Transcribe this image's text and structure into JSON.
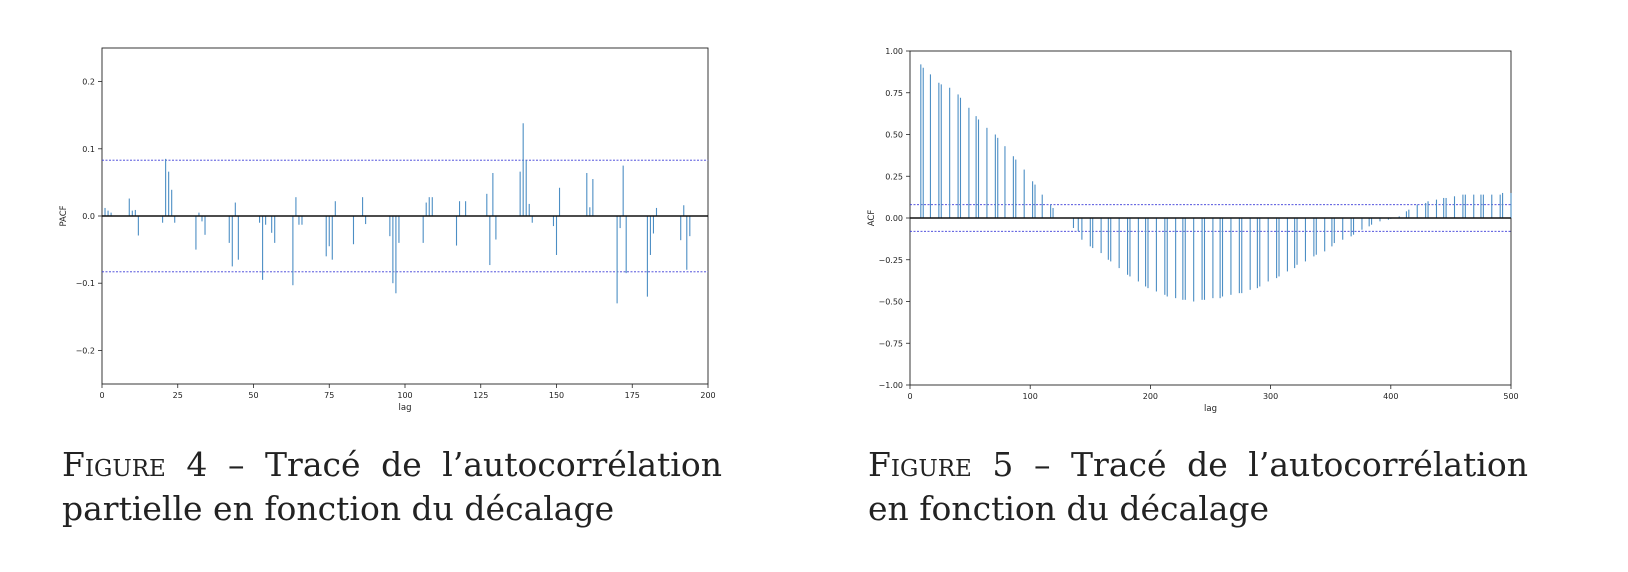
{
  "figures": [
    {
      "caption_label": "Figure",
      "caption_number": "4",
      "caption_separator": " – ",
      "caption_text": "Tracé de l’autocorrélation par­tielle en fonction du décalage"
    },
    {
      "caption_label": "Figure",
      "caption_number": "5",
      "caption_separator": " – ",
      "caption_text": "Tracé de l’autocorrélation en fonction du décalage"
    }
  ],
  "chart_data": [
    {
      "type": "bar",
      "style": "stem",
      "title": "",
      "xlabel": "lag",
      "ylabel": "PACF",
      "xlim": [
        0,
        200
      ],
      "ylim": [
        -0.25,
        0.25
      ],
      "xticks": [
        0,
        25,
        50,
        75,
        100,
        125,
        150,
        175,
        200
      ],
      "xtick_labels": [
        "0",
        "25",
        "50",
        "75",
        "100",
        "125",
        "150",
        "175",
        "200"
      ],
      "yticks": [
        -0.2,
        -0.1,
        0.0,
        0.1,
        0.2
      ],
      "ytick_labels": [
        "−0.2",
        "−0.1",
        "0.0",
        "0.1",
        "0.2"
      ],
      "confidence_band": [
        -0.083,
        0.083
      ],
      "line_color": "#4c8ec4",
      "band_color": "#3a3ad8",
      "x": [
        1,
        2,
        3,
        9,
        10,
        11,
        12,
        20,
        21,
        22,
        23,
        24,
        31,
        32,
        33,
        34,
        42,
        43,
        44,
        45,
        52,
        53,
        54,
        56,
        57,
        63,
        64,
        65,
        66,
        74,
        75,
        76,
        77,
        83,
        86,
        87,
        95,
        96,
        97,
        98,
        106,
        107,
        108,
        109,
        117,
        118,
        120,
        127,
        128,
        129,
        130,
        138,
        139,
        140,
        141,
        142,
        149,
        150,
        151,
        160,
        161,
        162,
        170,
        171,
        172,
        173,
        180,
        181,
        182,
        183,
        191,
        192,
        193,
        194
      ],
      "values": [
        0.012,
        0.008,
        0.005,
        0.026,
        0.008,
        0.009,
        -0.029,
        -0.01,
        0.085,
        0.066,
        0.039,
        -0.01,
        -0.05,
        0.005,
        -0.008,
        -0.028,
        -0.04,
        -0.075,
        0.02,
        -0.065,
        -0.01,
        -0.095,
        -0.013,
        -0.025,
        -0.04,
        -0.103,
        0.028,
        -0.013,
        -0.013,
        -0.06,
        -0.045,
        -0.065,
        0.022,
        -0.042,
        0.028,
        -0.012,
        -0.03,
        -0.1,
        -0.115,
        -0.04,
        -0.04,
        0.02,
        0.028,
        0.028,
        -0.044,
        0.022,
        0.022,
        0.033,
        -0.073,
        0.064,
        -0.035,
        0.066,
        0.138,
        0.083,
        0.018,
        -0.01,
        -0.015,
        -0.058,
        0.042,
        0.064,
        0.013,
        0.055,
        -0.13,
        -0.018,
        0.075,
        -0.085,
        -0.12,
        -0.058,
        -0.026,
        0.012,
        -0.036,
        0.016,
        -0.08,
        -0.03
      ]
    },
    {
      "type": "bar",
      "style": "stem",
      "title": "",
      "xlabel": "lag",
      "ylabel": "ACF",
      "xlim": [
        0,
        500
      ],
      "ylim": [
        -1.0,
        1.0
      ],
      "xticks": [
        0,
        100,
        200,
        300,
        400,
        500
      ],
      "xtick_labels": [
        "0",
        "100",
        "200",
        "300",
        "400",
        "500"
      ],
      "yticks": [
        -1.0,
        -0.75,
        -0.5,
        -0.25,
        0.0,
        0.25,
        0.5,
        0.75,
        1.0
      ],
      "ytick_labels": [
        "−1.00",
        "−0.75",
        "−0.50",
        "−0.25",
        "0.00",
        "0.25",
        "0.50",
        "0.75",
        "1.00"
      ],
      "confidence_band": [
        -0.08,
        0.08
      ],
      "line_color": "#4c8ec4",
      "band_color": "#3a3ad8",
      "x": [
        9,
        11,
        17,
        24,
        26,
        33,
        40,
        42,
        49,
        55,
        57,
        64,
        71,
        73,
        79,
        86,
        88,
        95,
        102,
        104,
        110,
        117,
        119,
        136,
        140,
        143,
        150,
        152,
        159,
        165,
        167,
        174,
        181,
        183,
        190,
        196,
        198,
        205,
        212,
        214,
        221,
        227,
        229,
        236,
        243,
        245,
        252,
        258,
        260,
        267,
        274,
        276,
        283,
        289,
        291,
        298,
        305,
        307,
        314,
        320,
        322,
        329,
        336,
        338,
        345,
        351,
        353,
        360,
        367,
        369,
        376,
        382,
        384,
        391,
        398,
        400,
        407,
        413,
        415,
        422,
        429,
        431,
        438,
        444,
        446,
        453,
        460,
        462,
        469,
        475,
        477,
        484,
        491,
        493,
        500
      ],
      "values": [
        0.92,
        0.9,
        0.86,
        0.81,
        0.8,
        0.78,
        0.74,
        0.72,
        0.66,
        0.61,
        0.59,
        0.54,
        0.5,
        0.48,
        0.43,
        0.37,
        0.35,
        0.29,
        0.22,
        0.2,
        0.14,
        0.08,
        0.06,
        -0.06,
        -0.08,
        -0.13,
        -0.17,
        -0.18,
        -0.21,
        -0.25,
        -0.26,
        -0.3,
        -0.34,
        -0.35,
        -0.38,
        -0.41,
        -0.42,
        -0.44,
        -0.46,
        -0.47,
        -0.48,
        -0.49,
        -0.49,
        -0.5,
        -0.49,
        -0.49,
        -0.48,
        -0.48,
        -0.47,
        -0.46,
        -0.45,
        -0.45,
        -0.43,
        -0.42,
        -0.41,
        -0.38,
        -0.36,
        -0.35,
        -0.32,
        -0.3,
        -0.28,
        -0.26,
        -0.23,
        -0.22,
        -0.2,
        -0.17,
        -0.15,
        -0.13,
        -0.11,
        -0.1,
        -0.07,
        -0.05,
        -0.04,
        -0.02,
        -0.01,
        -0.005,
        0.01,
        0.04,
        0.05,
        0.08,
        0.09,
        0.1,
        0.11,
        0.12,
        0.12,
        0.13,
        0.14,
        0.14,
        0.14,
        0.14,
        0.14,
        0.14,
        0.14,
        0.15,
        0.15
      ]
    }
  ]
}
